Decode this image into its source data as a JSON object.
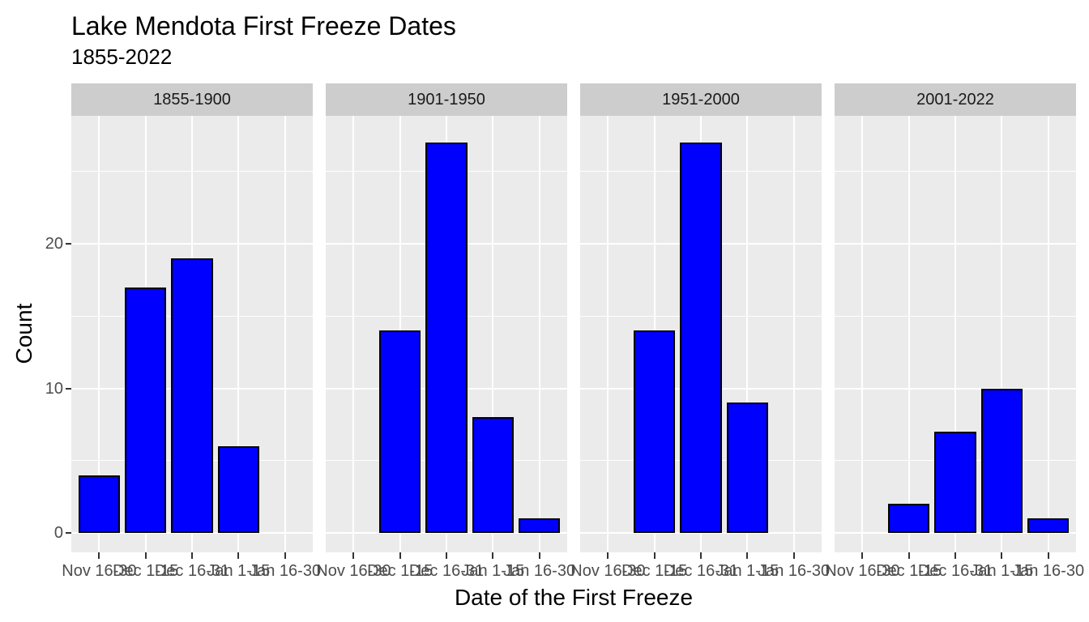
{
  "chart_data": {
    "type": "bar",
    "title": "Lake Mendota First Freeze Dates",
    "subtitle": "1855-2022",
    "xlabel": "Date of the First Freeze",
    "ylabel": "Count",
    "categories": [
      "Nov 16-30",
      "Dec 1-15",
      "Dec 16-31",
      "Jan 1-15",
      "Jan 16-30"
    ],
    "facets": [
      {
        "label": "1855-1900",
        "values": [
          4,
          17,
          19,
          6,
          0
        ]
      },
      {
        "label": "1901-1950",
        "values": [
          0,
          14,
          27,
          8,
          1
        ]
      },
      {
        "label": "1951-2000",
        "values": [
          0,
          14,
          27,
          9,
          0
        ]
      },
      {
        "label": "2001-2022",
        "values": [
          0,
          2,
          7,
          10,
          1
        ]
      }
    ],
    "y_ticks": [
      0,
      10,
      20
    ],
    "y_minor_ticks": [
      5,
      15,
      25
    ],
    "ylim": [
      0,
      28
    ],
    "grid": true,
    "legend": "none",
    "colors": {
      "bar_fill": "#0000FF",
      "bar_stroke": "#000000",
      "panel_bg": "#EBEBEB",
      "strip_bg": "#CDCDCD",
      "gridline": "#FFFFFF",
      "axis_text": "#4D4D4D",
      "tick_mark": "#333333",
      "title_text": "#000000"
    }
  }
}
